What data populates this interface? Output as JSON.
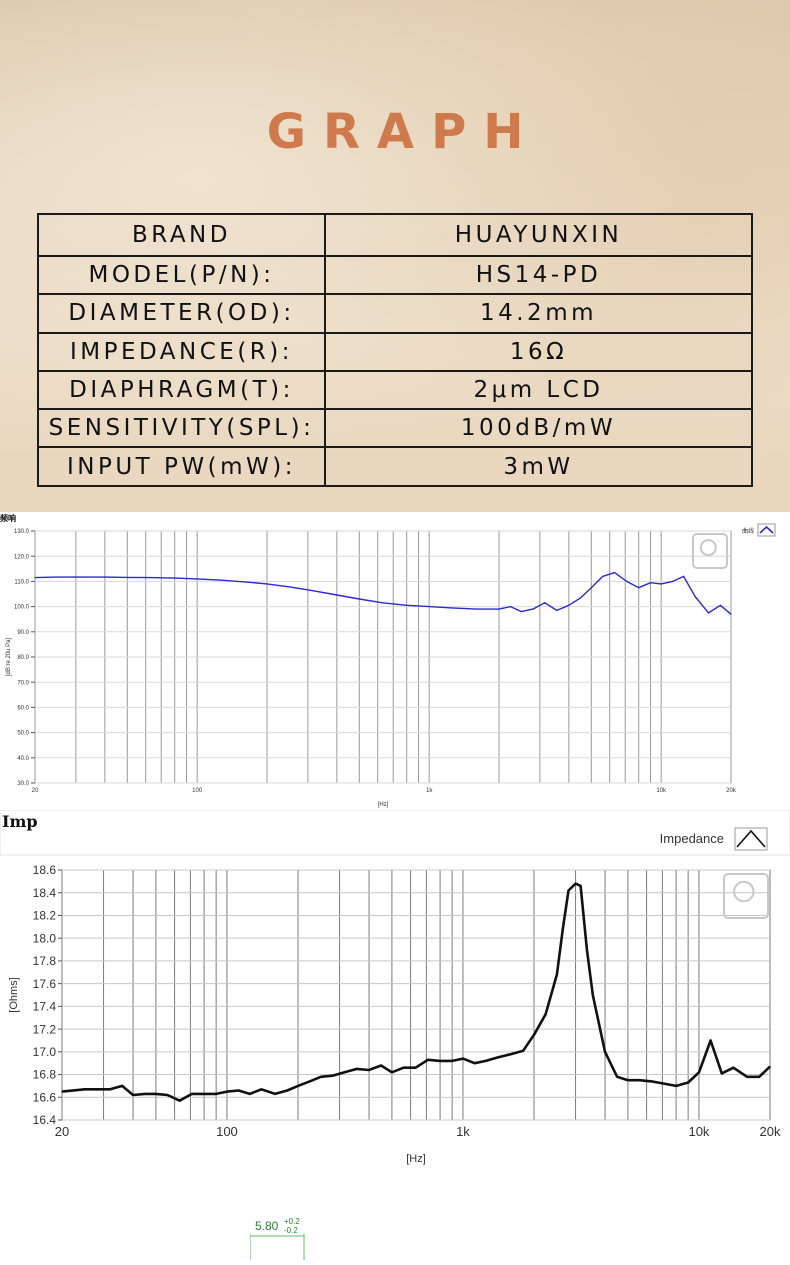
{
  "header": {
    "title": "GRAPH"
  },
  "specs": [
    {
      "label": "BRAND",
      "value": "HUAYUNXIN"
    },
    {
      "label": "MODEL(P/N):",
      "value": "HS14-PD"
    },
    {
      "label": "DIAMETER(OD):",
      "value": "14.2mm"
    },
    {
      "label": "IMPEDANCE(R):",
      "value": "16Ω"
    },
    {
      "label": "DIAPHRAGM(T):",
      "value": "2μm LCD"
    },
    {
      "label": "SENSITIVITY(SPL):",
      "value": "100dB/mW"
    },
    {
      "label": "INPUT PW(mW):",
      "value": "3mW"
    }
  ],
  "chart_data": [
    {
      "type": "line",
      "title": "频响",
      "xlabel": "[Hz]",
      "ylabel": "[dB re 20u Pa]",
      "xscale": "log",
      "xlim": [
        20,
        20000
      ],
      "ylim": [
        30,
        130
      ],
      "xticks": [
        "20",
        "100",
        "1k",
        "10k",
        "20k"
      ],
      "yticks": [
        "130.0",
        "120.0",
        "110.0",
        "100.0",
        "90.0",
        "80.0",
        "70.0",
        "60.0",
        "50.0",
        "40.0",
        "30.0"
      ],
      "legend": {
        "label": "曲线",
        "position": "top-right"
      },
      "grid": true,
      "series": [
        {
          "color": "#2a2ad0",
          "x": [
            20,
            25,
            32,
            40,
            50,
            63,
            80,
            100,
            125,
            160,
            200,
            250,
            315,
            400,
            500,
            630,
            800,
            1000,
            1250,
            1600,
            2000,
            2240,
            2500,
            2800,
            3150,
            3550,
            4000,
            4500,
            5000,
            5600,
            6300,
            7100,
            8000,
            9000,
            10000,
            11200,
            12500,
            14000,
            16000,
            18000,
            20000
          ],
          "y": [
            111.5,
            111.7,
            111.7,
            111.7,
            111.6,
            111.5,
            111.3,
            111.0,
            110.5,
            109.8,
            109.0,
            107.8,
            106.3,
            104.6,
            103.0,
            101.5,
            100.5,
            100.0,
            99.5,
            99.0,
            99.0,
            100.0,
            98.0,
            99.0,
            101.5,
            98.5,
            100.5,
            103.5,
            107.5,
            112.0,
            113.5,
            110.0,
            107.5,
            109.5,
            109.0,
            110.0,
            112.0,
            104.0,
            97.5,
            100.5,
            97.0
          ]
        }
      ]
    },
    {
      "type": "line",
      "title": "Imp",
      "xlabel": "[Hz]",
      "ylabel": "[Ohms]",
      "xscale": "log",
      "xlim": [
        20,
        20000
      ],
      "ylim": [
        16.4,
        18.6
      ],
      "xticks": [
        "20",
        "100",
        "1k",
        "10k",
        "20k"
      ],
      "yticks": [
        "18.6",
        "18.4",
        "18.2",
        "18.0",
        "17.8",
        "17.6",
        "17.4",
        "17.2",
        "17.0",
        "16.8",
        "16.6",
        "16.4"
      ],
      "legend": {
        "label": "Impedance",
        "position": "top-right"
      },
      "grid": true,
      "series": [
        {
          "name": "Impedance",
          "color": "#111111",
          "x": [
            20,
            25,
            28,
            32,
            36,
            40,
            45,
            50,
            56,
            63,
            71,
            80,
            90,
            100,
            112,
            125,
            140,
            160,
            180,
            200,
            224,
            250,
            280,
            315,
            355,
            400,
            450,
            500,
            560,
            630,
            710,
            800,
            900,
            1000,
            1120,
            1250,
            1400,
            1600,
            1800,
            2000,
            2240,
            2500,
            2650,
            2800,
            3000,
            3150,
            3350,
            3550,
            4000,
            4500,
            5000,
            5600,
            6300,
            7100,
            8000,
            9000,
            10000,
            11200,
            12500,
            14000,
            16000,
            18000,
            20000
          ],
          "y": [
            16.65,
            16.67,
            16.67,
            16.67,
            16.7,
            16.62,
            16.63,
            16.63,
            16.62,
            16.57,
            16.63,
            16.63,
            16.63,
            16.65,
            16.66,
            16.63,
            16.67,
            16.63,
            16.66,
            16.7,
            16.74,
            16.78,
            16.79,
            16.82,
            16.85,
            16.84,
            16.88,
            16.82,
            16.86,
            16.86,
            16.93,
            16.92,
            16.92,
            16.94,
            16.9,
            16.92,
            16.95,
            16.98,
            17.01,
            17.15,
            17.33,
            17.68,
            18.08,
            18.42,
            18.48,
            18.46,
            17.9,
            17.5,
            17.0,
            16.78,
            16.75,
            16.75,
            16.74,
            16.72,
            16.7,
            16.73,
            16.82,
            17.1,
            16.81,
            16.86,
            16.78,
            16.78,
            16.87
          ]
        }
      ]
    }
  ],
  "dimension": {
    "value": "5.80",
    "tol_plus": "+0.2",
    "tol_minus": "-0.2"
  }
}
